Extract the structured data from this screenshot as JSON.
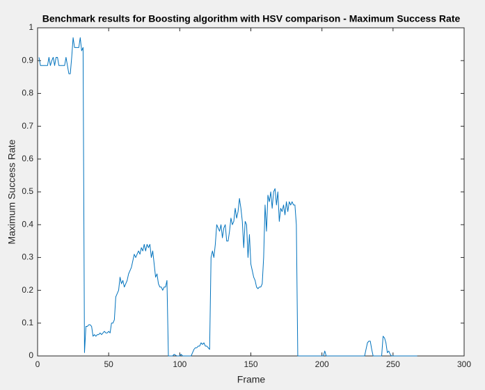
{
  "chart_data": {
    "type": "line",
    "title": "Benchmark results for Boosting algorithm with HSV comparison - Maximum Success Rate",
    "xlabel": "Frame",
    "ylabel": "Maximum Success Rate",
    "x": [
      1,
      2,
      3,
      5,
      7,
      8,
      9,
      10,
      11,
      12,
      13,
      14,
      15,
      17,
      19,
      20,
      21,
      22,
      23,
      24,
      25,
      26,
      27,
      28,
      29,
      30,
      31,
      32,
      33,
      34,
      35,
      36,
      37,
      38,
      39,
      40,
      41,
      42,
      43,
      44,
      45,
      46,
      47,
      48,
      49,
      50,
      51,
      52,
      53,
      54,
      55,
      56,
      57,
      58,
      59,
      60,
      61,
      62,
      63,
      64,
      65,
      66,
      67,
      68,
      69,
      70,
      71,
      72,
      73,
      74,
      75,
      76,
      77,
      78,
      79,
      80,
      81,
      82,
      83,
      84,
      85,
      86,
      87,
      88,
      89,
      90,
      91,
      92,
      95,
      96,
      98,
      100,
      101,
      102,
      108,
      109,
      110,
      111,
      112,
      113,
      114,
      115,
      116,
      117,
      118,
      119,
      120,
      121,
      122,
      123,
      124,
      125,
      126,
      127,
      128,
      129,
      130,
      131,
      132,
      133,
      134,
      135,
      136,
      137,
      138,
      139,
      140,
      141,
      142,
      143,
      144,
      145,
      146,
      147,
      148,
      149,
      150,
      151,
      152,
      153,
      154,
      155,
      156,
      157,
      158,
      159,
      160,
      161,
      162,
      163,
      164,
      165,
      166,
      167,
      168,
      169,
      170,
      171,
      172,
      173,
      174,
      175,
      176,
      177,
      178,
      179,
      180,
      181,
      182,
      183,
      200,
      201,
      202,
      203,
      230,
      231,
      232,
      233,
      234,
      235,
      236,
      242,
      243,
      244,
      245,
      246,
      247,
      248,
      249,
      267
    ],
    "series": [
      {
        "name": "Maximum Success Rate",
        "color": "#0072bd",
        "values": [
          0.91,
          0.885,
          0.885,
          0.885,
          0.885,
          0.91,
          0.885,
          0.9,
          0.91,
          0.885,
          0.91,
          0.91,
          0.885,
          0.885,
          0.885,
          0.91,
          0.885,
          0.86,
          0.86,
          0.91,
          0.97,
          0.94,
          0.94,
          0.94,
          0.94,
          0.97,
          0.93,
          0.94,
          0.01,
          0.09,
          0.09,
          0.095,
          0.095,
          0.09,
          0.06,
          0.065,
          0.06,
          0.065,
          0.065,
          0.07,
          0.065,
          0.07,
          0.075,
          0.07,
          0.07,
          0.075,
          0.07,
          0.1,
          0.1,
          0.11,
          0.18,
          0.19,
          0.2,
          0.24,
          0.22,
          0.23,
          0.21,
          0.22,
          0.23,
          0.25,
          0.26,
          0.27,
          0.29,
          0.31,
          0.3,
          0.31,
          0.32,
          0.31,
          0.33,
          0.32,
          0.34,
          0.32,
          0.34,
          0.33,
          0.34,
          0.3,
          0.32,
          0.28,
          0.24,
          0.25,
          0.22,
          0.21,
          0.21,
          0.2,
          0.21,
          0.21,
          0.23,
          0,
          0,
          0.005,
          0,
          0,
          0.005,
          0,
          0,
          0.01,
          0.02,
          0.025,
          0.025,
          0.03,
          0.03,
          0.04,
          0.035,
          0.04,
          0.03,
          0.03,
          0.025,
          0.02,
          0.3,
          0.32,
          0.3,
          0.34,
          0.4,
          0.39,
          0.38,
          0.4,
          0.36,
          0.39,
          0.4,
          0.35,
          0.35,
          0.38,
          0.42,
          0.4,
          0.41,
          0.45,
          0.42,
          0.44,
          0.48,
          0.45,
          0.41,
          0.33,
          0.41,
          0.4,
          0.3,
          0.37,
          0.28,
          0.26,
          0.24,
          0.23,
          0.21,
          0.205,
          0.21,
          0.21,
          0.22,
          0.3,
          0.46,
          0.38,
          0.49,
          0.47,
          0.5,
          0.45,
          0.5,
          0.51,
          0.46,
          0.5,
          0.41,
          0.45,
          0.44,
          0.46,
          0.43,
          0.47,
          0.44,
          0.47,
          0.46,
          0.47,
          0.46,
          0.46,
          0.4,
          0,
          0,
          0,
          0.015,
          0,
          0,
          0.02,
          0.04,
          0.045,
          0.045,
          0.02,
          0,
          0,
          0.06,
          0.055,
          0.04,
          0.01,
          0.015,
          0.005,
          0,
          0
        ]
      }
    ],
    "xlim": [
      0,
      300
    ],
    "xticks": [
      0,
      50,
      100,
      150,
      200,
      250,
      300
    ],
    "ylim": [
      0,
      1
    ],
    "yticks": [
      0,
      0.1,
      0.2,
      0.3,
      0.4,
      0.5,
      0.6,
      0.7,
      0.8,
      0.9,
      1
    ],
    "grid": false
  }
}
